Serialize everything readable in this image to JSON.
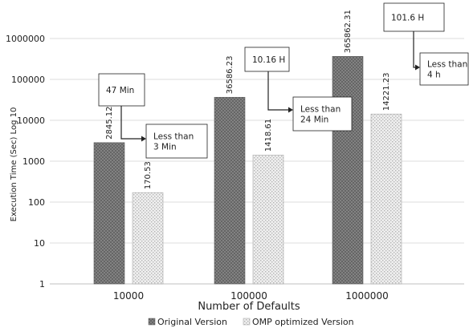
{
  "chart_data": {
    "type": "bar",
    "title": "",
    "xlabel": "Number of Defaults",
    "ylabel": "Execution Time (Sec) Log 10",
    "yscale": "log",
    "ylim": [
      1,
      1000000
    ],
    "yticks": [
      "1",
      "10",
      "100",
      "1000",
      "10000",
      "100000",
      "1000000"
    ],
    "categories": [
      "10000",
      "100000",
      "1000000"
    ],
    "series": [
      {
        "name": "Original Version",
        "values": [
          2845.12,
          36586.23,
          365862.31
        ],
        "labels": [
          "2845.12",
          "36586.23",
          "365862.31"
        ],
        "color": "#7a7a7a",
        "pattern": "dark-crosshatch"
      },
      {
        "name": "OMP optimized Version",
        "values": [
          170.53,
          1418.61,
          14221.23
        ],
        "labels": [
          "170.53",
          "1418.61",
          "14221.23"
        ],
        "color": "#e6e6e6",
        "pattern": "light-dots"
      }
    ],
    "grid": true,
    "legend": "bottom",
    "annotations": [
      {
        "category": "10000",
        "original_text": [
          "47 Min"
        ],
        "optimized_text": [
          "Less than",
          "3 Min"
        ]
      },
      {
        "category": "100000",
        "original_text": [
          "10.16 H"
        ],
        "optimized_text": [
          "Less than",
          "24 Min"
        ]
      },
      {
        "category": "1000000",
        "original_text": [
          "101.6 H"
        ],
        "optimized_text": [
          "Less than",
          "4 h"
        ]
      }
    ]
  }
}
